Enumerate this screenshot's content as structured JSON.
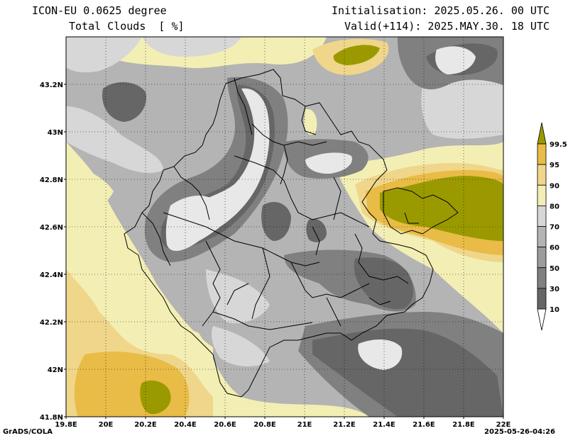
{
  "header": {
    "model": "ICON-EU 0.0625 degree",
    "variable": "Total Clouds  [ %]",
    "init": "Initialisation: 2025.05.26. 00 UTC",
    "valid": "Valid(+114): 2025.MAY.30. 18 UTC"
  },
  "footer": {
    "credit": "GrADS/COLA",
    "timestamp": "2025-05-26-04:26"
  },
  "map": {
    "lat_ticks": [
      "43.2N",
      "43N",
      "42.8N",
      "42.6N",
      "42.4N",
      "42.2N",
      "42N",
      "41.8N"
    ],
    "lon_ticks": [
      "19.8E",
      "20E",
      "20.2E",
      "20.4E",
      "20.6E",
      "20.8E",
      "21E",
      "21.2E",
      "21.4E",
      "21.6E",
      "21.8E",
      "22E"
    ],
    "lon_range": [
      19.8,
      22.0
    ],
    "lat_range": [
      41.8,
      43.4
    ]
  },
  "legend": {
    "levels": [
      "10",
      "30",
      "50",
      "60",
      "70",
      "80",
      "90",
      "95",
      "99.5"
    ],
    "colors": {
      "c0": "#ffffff",
      "c10": "#666666",
      "c30": "#808080",
      "c50": "#9c9c9c",
      "c60": "#b4b4b4",
      "c70": "#d7d7d7",
      "c80": "#f3efb4",
      "c90": "#efd68a",
      "c95": "#e8bc46",
      "c995": "#9a9a00"
    }
  }
}
